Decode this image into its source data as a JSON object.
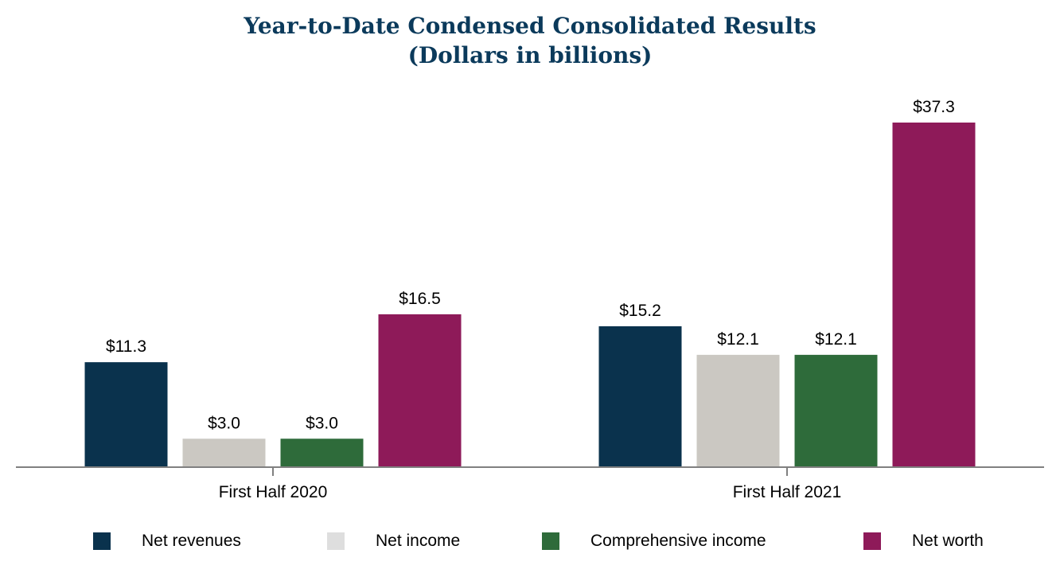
{
  "chart_data": {
    "type": "bar",
    "title": "Year-to-Date Condensed Consolidated Results",
    "subtitle": "(Dollars in billions)",
    "categories": [
      "First Half 2020",
      "First Half 2021"
    ],
    "series": [
      {
        "name": "Net revenues",
        "values": [
          11.3,
          15.2
        ],
        "labels": [
          "$11.3",
          "$15.2"
        ],
        "color": "#0a324d"
      },
      {
        "name": "Net income",
        "values": [
          3.0,
          12.1
        ],
        "labels": [
          "$3.0",
          "$12.1"
        ],
        "color": "#cbc8c2"
      },
      {
        "name": "Comprehensive income",
        "values": [
          3.0,
          12.1
        ],
        "labels": [
          "$3.0",
          "$12.1"
        ],
        "color": "#2e6b3a"
      },
      {
        "name": "Net worth",
        "values": [
          16.5,
          37.3
        ],
        "labels": [
          "$16.5",
          "$37.3"
        ],
        "color": "#8e1a59"
      }
    ],
    "legend_colors": [
      "#0a324d",
      "#dedede",
      "#2e6b3a",
      "#8e1a59"
    ],
    "ylim": [
      0,
      40
    ],
    "grid": false,
    "legend_position": "bottom"
  }
}
